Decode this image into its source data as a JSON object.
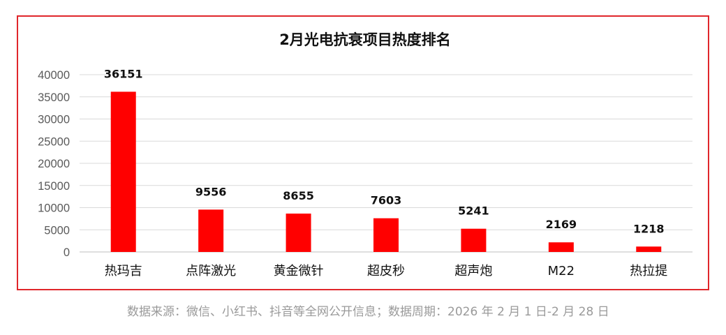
{
  "chart_data": {
    "type": "bar",
    "title": "2月光电抗衰项目热度排名",
    "categories": [
      "热玛吉",
      "点阵激光",
      "黄金微针",
      "超皮秒",
      "超声炮",
      "M22",
      "热拉提"
    ],
    "values": [
      36151,
      9556,
      8655,
      7603,
      5241,
      2169,
      1218
    ],
    "ylim": [
      0,
      40000
    ],
    "yticks": [
      0,
      5000,
      10000,
      15000,
      20000,
      25000,
      30000,
      35000,
      40000
    ],
    "xlabel": "",
    "ylabel": "",
    "grid": true,
    "bar_color": "#ff0000",
    "frame_color": "#e0262b"
  },
  "source_note": "数据来源：微信、小红书、抖音等全网公开信息；数据周期：2026 年 2 月 1 日-2 月 28 日"
}
